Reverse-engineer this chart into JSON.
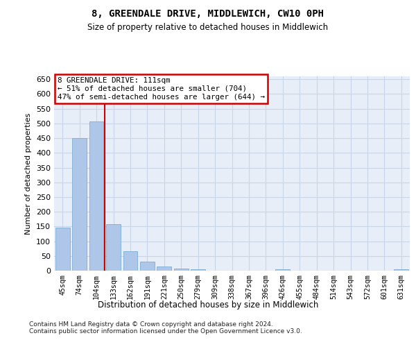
{
  "title": "8, GREENDALE DRIVE, MIDDLEWICH, CW10 0PH",
  "subtitle": "Size of property relative to detached houses in Middlewich",
  "xlabel": "Distribution of detached houses by size in Middlewich",
  "ylabel": "Number of detached properties",
  "categories": [
    "45sqm",
    "74sqm",
    "104sqm",
    "133sqm",
    "162sqm",
    "191sqm",
    "221sqm",
    "250sqm",
    "279sqm",
    "309sqm",
    "338sqm",
    "367sqm",
    "396sqm",
    "426sqm",
    "455sqm",
    "484sqm",
    "514sqm",
    "543sqm",
    "572sqm",
    "601sqm",
    "631sqm"
  ],
  "values": [
    147,
    450,
    507,
    158,
    65,
    30,
    13,
    8,
    5,
    0,
    0,
    0,
    0,
    5,
    0,
    0,
    0,
    0,
    0,
    0,
    5
  ],
  "bar_color": "#aec6e8",
  "bar_edge_color": "#7aadd4",
  "grid_color": "#c8d4e8",
  "background_color": "#e8eef8",
  "red_line_x": 2.5,
  "annotation_line1": "8 GREENDALE DRIVE: 111sqm",
  "annotation_line2": "← 51% of detached houses are smaller (704)",
  "annotation_line3": "47% of semi-detached houses are larger (644) →",
  "annotation_box_color": "#ffffff",
  "annotation_border_color": "#cc0000",
  "footer_text": "Contains HM Land Registry data © Crown copyright and database right 2024.\nContains public sector information licensed under the Open Government Licence v3.0.",
  "ylim": [
    0,
    660
  ],
  "yticks": [
    0,
    50,
    100,
    150,
    200,
    250,
    300,
    350,
    400,
    450,
    500,
    550,
    600,
    650
  ]
}
